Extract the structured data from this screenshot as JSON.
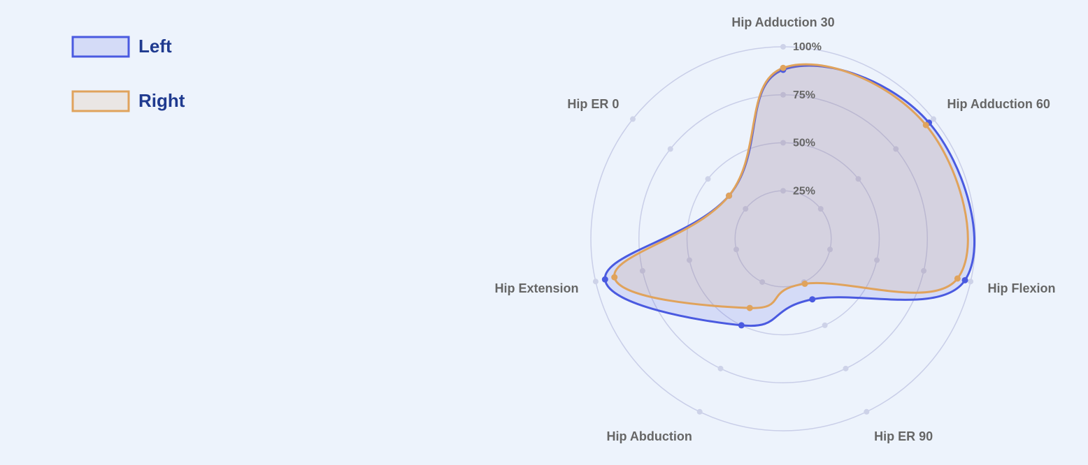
{
  "chart_data": {
    "type": "radar",
    "categories": [
      "Hip Adduction 30",
      "Hip Adduction 60",
      "Hip Flexion",
      "Hip ER 90",
      "Hip Abduction",
      "Hip Extension",
      "Hip ER 0"
    ],
    "series": [
      {
        "name": "Left",
        "color": "#4a5ae0",
        "values": [
          88,
          97,
          97,
          35,
          50,
          95,
          36
        ]
      },
      {
        "name": "Right",
        "color": "#e0a35c",
        "values": [
          89,
          95,
          93,
          26,
          40,
          90,
          36
        ]
      }
    ],
    "ylim": [
      0,
      100
    ],
    "yticks": [
      {
        "value": 25,
        "label": "25%"
      },
      {
        "value": 50,
        "label": "50%"
      },
      {
        "value": 75,
        "label": "75%"
      },
      {
        "value": 100,
        "label": "100%"
      }
    ],
    "grid": true,
    "legend": "top-left"
  }
}
